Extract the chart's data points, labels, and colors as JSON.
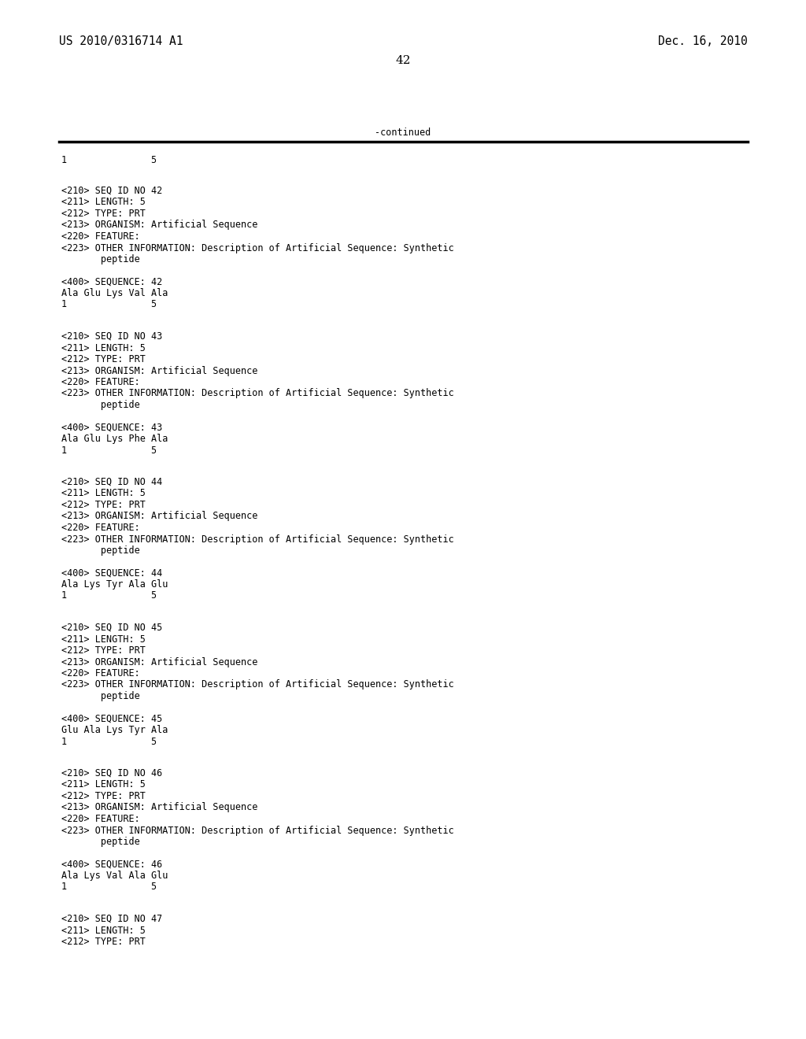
{
  "header_left": "US 2010/0316714 A1",
  "header_right": "Dec. 16, 2010",
  "page_number": "42",
  "continued_label": "-continued",
  "background_color": "#ffffff",
  "text_color": "#000000",
  "font_size_header": 10.5,
  "font_size_body": 8.5,
  "font_size_page": 11,
  "blocks": [
    {
      "lines": [
        "<210> SEQ ID NO 42",
        "<211> LENGTH: 5",
        "<212> TYPE: PRT",
        "<213> ORGANISM: Artificial Sequence",
        "<220> FEATURE:",
        "<223> OTHER INFORMATION: Description of Artificial Sequence: Synthetic",
        "       peptide"
      ],
      "sequence_label": "<400> SEQUENCE: 42",
      "sequence": "Ala Glu Lys Val Ala",
      "seq_numbers": "1               5"
    },
    {
      "lines": [
        "<210> SEQ ID NO 43",
        "<211> LENGTH: 5",
        "<212> TYPE: PRT",
        "<213> ORGANISM: Artificial Sequence",
        "<220> FEATURE:",
        "<223> OTHER INFORMATION: Description of Artificial Sequence: Synthetic",
        "       peptide"
      ],
      "sequence_label": "<400> SEQUENCE: 43",
      "sequence": "Ala Glu Lys Phe Ala",
      "seq_numbers": "1               5"
    },
    {
      "lines": [
        "<210> SEQ ID NO 44",
        "<211> LENGTH: 5",
        "<212> TYPE: PRT",
        "<213> ORGANISM: Artificial Sequence",
        "<220> FEATURE:",
        "<223> OTHER INFORMATION: Description of Artificial Sequence: Synthetic",
        "       peptide"
      ],
      "sequence_label": "<400> SEQUENCE: 44",
      "sequence": "Ala Lys Tyr Ala Glu",
      "seq_numbers": "1               5"
    },
    {
      "lines": [
        "<210> SEQ ID NO 45",
        "<211> LENGTH: 5",
        "<212> TYPE: PRT",
        "<213> ORGANISM: Artificial Sequence",
        "<220> FEATURE:",
        "<223> OTHER INFORMATION: Description of Artificial Sequence: Synthetic",
        "       peptide"
      ],
      "sequence_label": "<400> SEQUENCE: 45",
      "sequence": "Glu Ala Lys Tyr Ala",
      "seq_numbers": "1               5"
    },
    {
      "lines": [
        "<210> SEQ ID NO 46",
        "<211> LENGTH: 5",
        "<212> TYPE: PRT",
        "<213> ORGANISM: Artificial Sequence",
        "<220> FEATURE:",
        "<223> OTHER INFORMATION: Description of Artificial Sequence: Synthetic",
        "       peptide"
      ],
      "sequence_label": "<400> SEQUENCE: 46",
      "sequence": "Ala Lys Val Ala Glu",
      "seq_numbers": "1               5"
    },
    {
      "lines": [
        "<210> SEQ ID NO 47",
        "<211> LENGTH: 5",
        "<212> TYPE: PRT"
      ],
      "sequence_label": null,
      "sequence": null,
      "seq_numbers": null
    }
  ]
}
